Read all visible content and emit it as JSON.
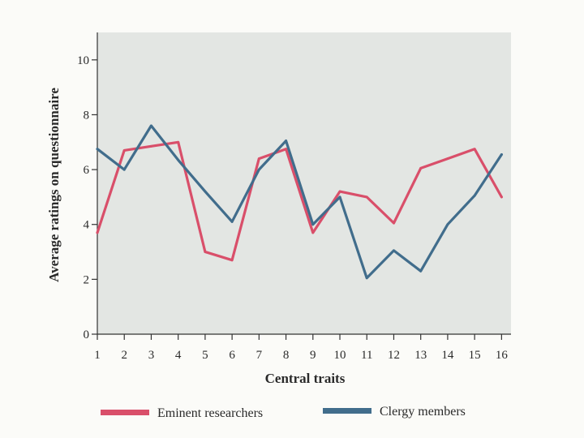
{
  "chart_data": {
    "type": "line",
    "title": "",
    "xlabel": "Central traits",
    "ylabel": "Average ratings on questionnaire",
    "x": [
      1,
      2,
      3,
      4,
      5,
      6,
      7,
      8,
      9,
      10,
      11,
      12,
      13,
      14,
      15,
      16
    ],
    "x_tick_labels": [
      "1",
      "2",
      "3",
      "4",
      "5",
      "6",
      "7",
      "8",
      "9",
      "10",
      "11",
      "12",
      "13",
      "14",
      "15",
      "16"
    ],
    "y_tick_labels": [
      "0",
      "2",
      "4",
      "6",
      "8",
      "10"
    ],
    "y_ticks": [
      0,
      2,
      4,
      6,
      8,
      10
    ],
    "ylim": [
      0,
      11
    ],
    "xlim": [
      1,
      16.35
    ],
    "grid": false,
    "legend_position": "bottom",
    "plot_background": "#e3e6e3",
    "series": [
      {
        "name": "Eminent researchers",
        "color": "#d94f6a",
        "values": [
          3.7,
          6.7,
          6.85,
          7.0,
          3.0,
          2.7,
          6.4,
          6.75,
          3.7,
          5.2,
          5.0,
          4.05,
          6.05,
          6.4,
          6.75,
          5.0
        ]
      },
      {
        "name": "Clergy members",
        "color": "#416d8c",
        "values": [
          6.75,
          6.0,
          7.6,
          6.35,
          5.2,
          4.1,
          6.0,
          7.05,
          4.0,
          5.0,
          2.05,
          3.05,
          2.3,
          4.0,
          5.05,
          6.55
        ]
      }
    ],
    "legend": {
      "items": [
        "Eminent researchers",
        "Clergy members"
      ]
    }
  }
}
